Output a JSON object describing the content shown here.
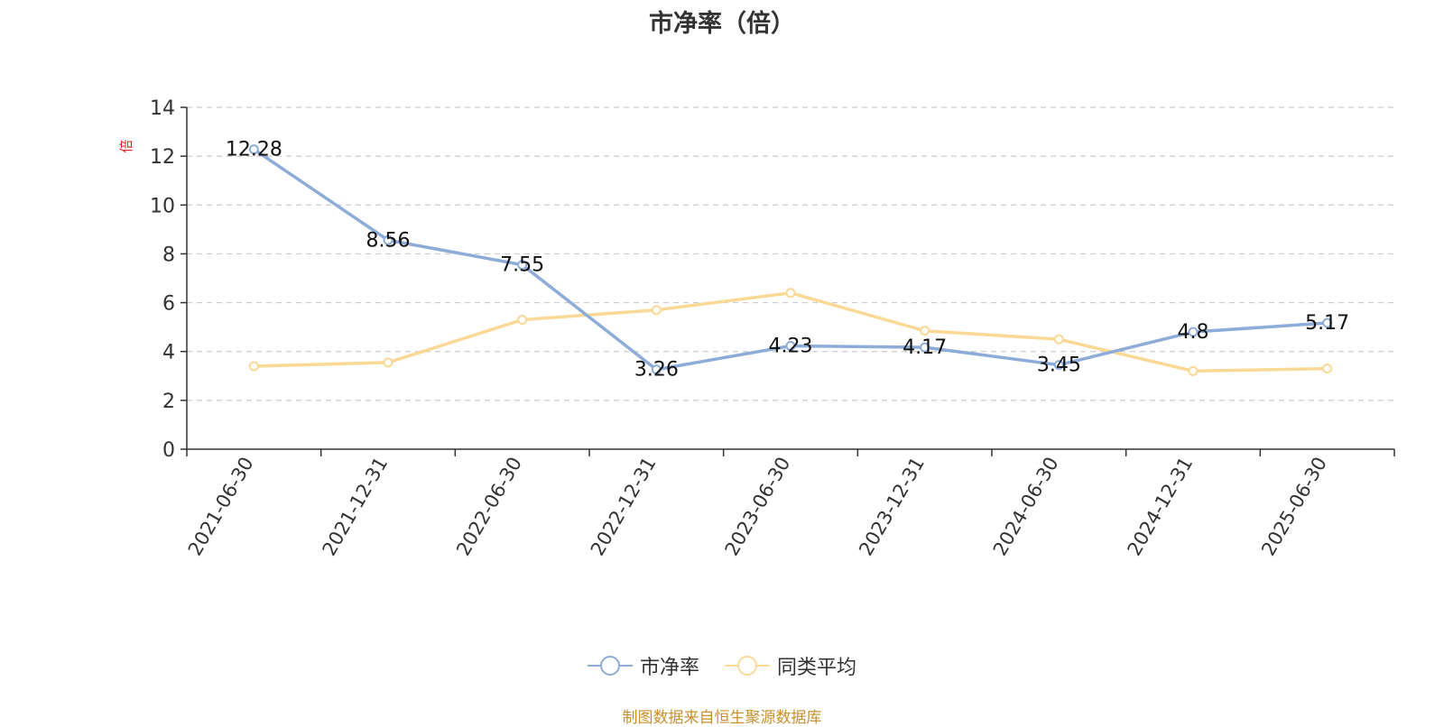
{
  "title": "市净率（倍）",
  "source_note": "制图数据来自恒生聚源数据库",
  "colors": {
    "pb": "#8eacd8",
    "peer": "#fad997",
    "grid": "#cccccc",
    "axis": "#333333",
    "unit": "#e02020",
    "label": "#111111"
  },
  "chart_data": {
    "type": "line",
    "title": "市净率（倍）",
    "ylabel": "倍",
    "xlabel": "",
    "categories": [
      "2021-06-30",
      "2021-12-31",
      "2022-06-30",
      "2022-12-31",
      "2023-06-30",
      "2023-12-31",
      "2024-06-30",
      "2024-12-31",
      "2025-06-30"
    ],
    "ylim": [
      0,
      14
    ],
    "yticks": [
      0,
      2,
      4,
      6,
      8,
      10,
      12,
      14
    ],
    "grid": true,
    "legend_position": "bottom",
    "series": [
      {
        "name": "市净率",
        "values": [
          12.28,
          8.56,
          7.55,
          3.26,
          4.23,
          4.17,
          3.45,
          4.8,
          5.17
        ],
        "value_labels": [
          "12.28",
          "8.56",
          "7.55",
          "3.26",
          "4.23",
          "4.17",
          "3.45",
          "4.8",
          "5.17"
        ],
        "show_labels": true,
        "color": "#8eacd8"
      },
      {
        "name": "同类平均",
        "values": [
          3.4,
          3.55,
          5.3,
          5.7,
          6.4,
          4.85,
          4.5,
          3.2,
          3.3
        ],
        "show_labels": false,
        "color": "#fad997"
      }
    ]
  }
}
